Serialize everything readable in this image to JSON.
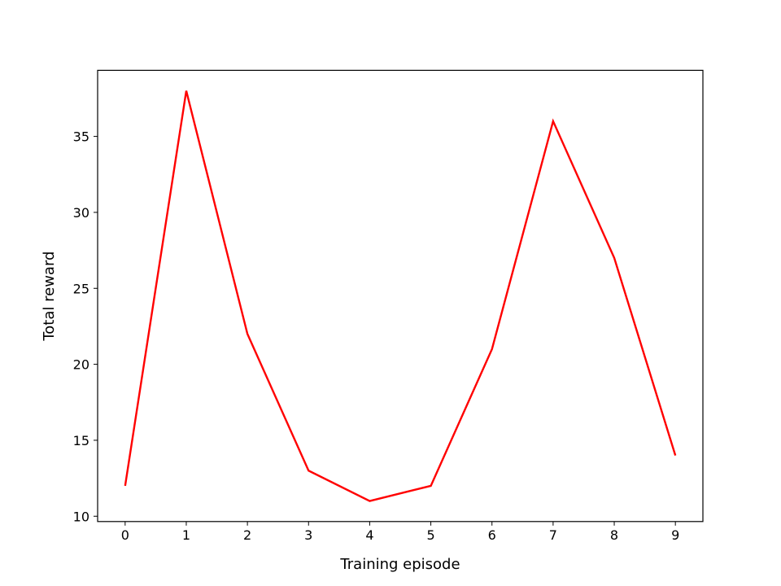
{
  "chart_data": {
    "type": "line",
    "title": "",
    "xlabel": "Training episode",
    "ylabel": "Total reward",
    "x": [
      0,
      1,
      2,
      3,
      4,
      5,
      6,
      7,
      8,
      9
    ],
    "series": [
      {
        "values": [
          12,
          38,
          22,
          13,
          11,
          12,
          21,
          36,
          27,
          14
        ],
        "color": "#ff0000"
      }
    ],
    "xticks": [
      0,
      1,
      2,
      3,
      4,
      5,
      6,
      7,
      8,
      9
    ],
    "yticks": [
      10,
      15,
      20,
      25,
      30,
      35
    ],
    "xlim": [
      -0.45,
      9.45
    ],
    "ylim": [
      9.65,
      39.35
    ],
    "grid": false,
    "legend": "none"
  }
}
